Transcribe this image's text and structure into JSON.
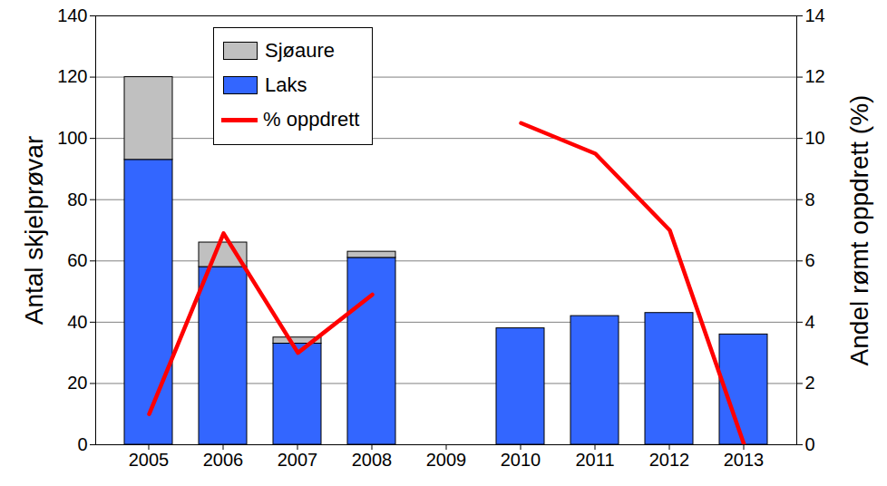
{
  "chart_data": {
    "type": "bar",
    "categories": [
      "2005",
      "2006",
      "2007",
      "2008",
      "2009",
      "2010",
      "2011",
      "2012",
      "2013"
    ],
    "series": [
      {
        "name": "Sjøaure",
        "type": "bar",
        "color": "#c0c0c0",
        "values": [
          27,
          8,
          2,
          2,
          null,
          0,
          0,
          0,
          0
        ]
      },
      {
        "name": "Laks",
        "type": "bar",
        "color": "#3366ff",
        "values": [
          93,
          58,
          33,
          61,
          null,
          38,
          42,
          43,
          36
        ]
      },
      {
        "name": "% oppdrett",
        "type": "line",
        "axis": "y2",
        "color": "#ff0000",
        "values": [
          1.0,
          6.9,
          3.0,
          4.9,
          null,
          10.5,
          9.5,
          7.0,
          0
        ]
      }
    ],
    "y_label": "Antal skjelprøvar",
    "y2_label": "Andel rømt oppdrett (%)",
    "ylim": [
      0,
      140
    ],
    "yticks": [
      0,
      20,
      40,
      60,
      80,
      100,
      120,
      140
    ],
    "y2lim": [
      0,
      14
    ],
    "y2ticks": [
      0,
      2,
      4,
      6,
      8,
      10,
      12,
      14
    ],
    "stacked": true,
    "grid": true,
    "legend": "top-left"
  }
}
